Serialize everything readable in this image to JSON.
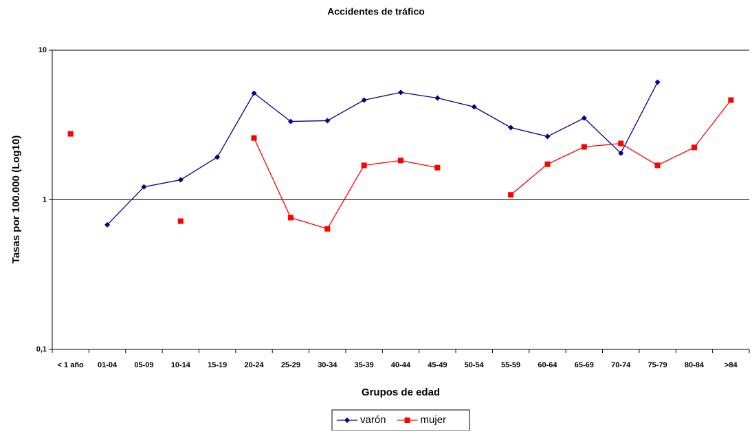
{
  "chart_data": {
    "type": "line",
    "title": "Accidentes de tráfico",
    "x_label": "Grupos de edad",
    "y_label": "Tasas por 100.000 (Log10)",
    "categories": [
      "< 1 año",
      "01-04",
      "05-09",
      "10-14",
      "15-19",
      "20-24",
      "25-29",
      "30-34",
      "35-39",
      "40-44",
      "45-49",
      "50-54",
      "55-59",
      "60-64",
      "65-69",
      "70-74",
      "75-79",
      "80-84",
      ">84"
    ],
    "series": [
      {
        "name": "varón",
        "color": "#000080",
        "marker": "diamond",
        "values": [
          null,
          0.68,
          1.22,
          1.36,
          1.93,
          5.16,
          3.34,
          3.38,
          4.64,
          5.22,
          4.79,
          4.18,
          3.04,
          2.65,
          3.52,
          2.05,
          6.11,
          null,
          null
        ]
      },
      {
        "name": "mujer",
        "color": "#ff0000",
        "marker": "square",
        "values": [
          2.76,
          null,
          null,
          0.72,
          null,
          2.59,
          0.76,
          0.64,
          1.7,
          1.83,
          1.64,
          null,
          1.08,
          1.73,
          2.26,
          2.38,
          1.7,
          2.24,
          4.64
        ]
      }
    ],
    "log_y": true,
    "ylim": [
      0.1,
      10
    ],
    "yticks": [
      {
        "value": 0.1,
        "label": "0,1"
      },
      1,
      10
    ],
    "grid": true,
    "legend": "bottom"
  }
}
